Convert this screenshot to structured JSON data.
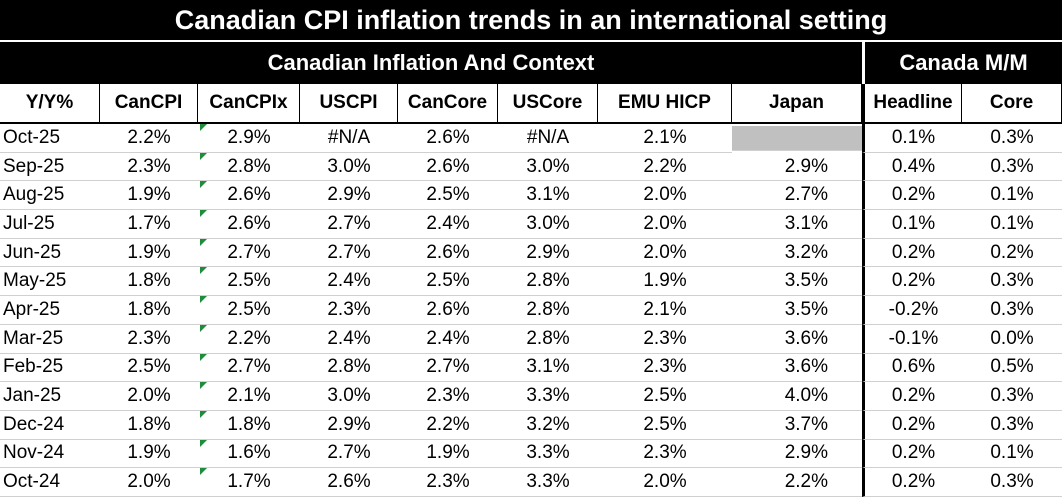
{
  "header": {
    "title": "Canadian CPI inflation trends in an international setting",
    "group_left": "Canadian Inflation And Context",
    "group_right": "Canada M/M"
  },
  "table": {
    "columns": [
      "Y/Y%",
      "CanCPI",
      "CanCPIx",
      "USCPI",
      "CanCore",
      "USCore",
      "EMU HICP",
      "Japan",
      "Headline",
      "Core"
    ],
    "rows": [
      [
        "Oct-25",
        "2.2%",
        "2.9%",
        "#N/A",
        "2.6%",
        "#N/A",
        "2.1%",
        null,
        "0.1%",
        "0.3%"
      ],
      [
        "Sep-25",
        "2.3%",
        "2.8%",
        "3.0%",
        "2.6%",
        "3.0%",
        "2.2%",
        "2.9%",
        "0.4%",
        "0.3%"
      ],
      [
        "Aug-25",
        "1.9%",
        "2.6%",
        "2.9%",
        "2.5%",
        "3.1%",
        "2.0%",
        "2.7%",
        "0.2%",
        "0.1%"
      ],
      [
        "Jul-25",
        "1.7%",
        "2.6%",
        "2.7%",
        "2.4%",
        "3.0%",
        "2.0%",
        "3.1%",
        "0.1%",
        "0.1%"
      ],
      [
        "Jun-25",
        "1.9%",
        "2.7%",
        "2.7%",
        "2.6%",
        "2.9%",
        "2.0%",
        "3.2%",
        "0.2%",
        "0.2%"
      ],
      [
        "May-25",
        "1.8%",
        "2.5%",
        "2.4%",
        "2.5%",
        "2.8%",
        "1.9%",
        "3.5%",
        "0.2%",
        "0.3%"
      ],
      [
        "Apr-25",
        "1.8%",
        "2.5%",
        "2.3%",
        "2.6%",
        "2.8%",
        "2.1%",
        "3.5%",
        "-0.2%",
        "0.3%"
      ],
      [
        "Mar-25",
        "2.3%",
        "2.2%",
        "2.4%",
        "2.4%",
        "2.8%",
        "2.3%",
        "3.6%",
        "-0.1%",
        "0.0%"
      ],
      [
        "Feb-25",
        "2.5%",
        "2.7%",
        "2.8%",
        "2.7%",
        "3.1%",
        "2.3%",
        "3.6%",
        "0.6%",
        "0.5%"
      ],
      [
        "Jan-25",
        "2.0%",
        "2.1%",
        "3.0%",
        "2.3%",
        "3.3%",
        "2.5%",
        "4.0%",
        "0.2%",
        "0.3%"
      ],
      [
        "Dec-24",
        "1.8%",
        "1.8%",
        "2.9%",
        "2.2%",
        "3.2%",
        "2.5%",
        "3.7%",
        "0.2%",
        "0.3%"
      ],
      [
        "Nov-24",
        "1.9%",
        "1.6%",
        "2.7%",
        "1.9%",
        "3.3%",
        "2.3%",
        "2.9%",
        "0.2%",
        "0.1%"
      ],
      [
        "Oct-24",
        "2.0%",
        "1.7%",
        "2.6%",
        "2.3%",
        "3.3%",
        "2.0%",
        "2.2%",
        "0.2%",
        "0.3%"
      ]
    ]
  }
}
